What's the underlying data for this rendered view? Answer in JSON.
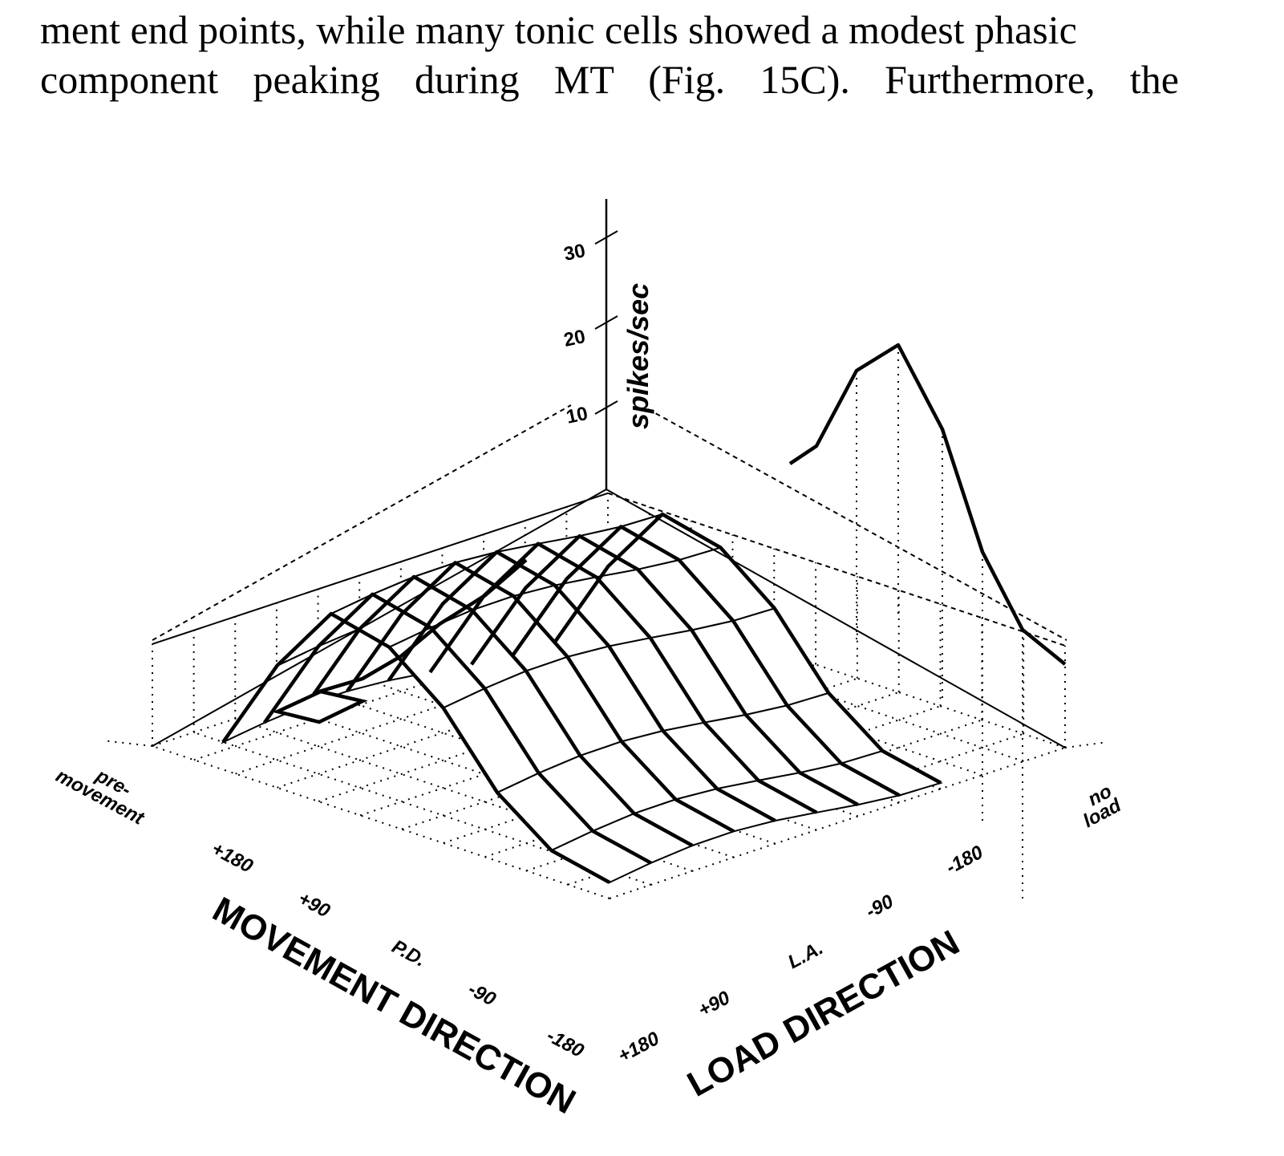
{
  "text": {
    "line1": "ment end points, while many tonic cells showed a modest phasic",
    "line2": "component peaking during MT (Fig. 15C). Furthermore, the"
  },
  "figure": {
    "z_axis": {
      "label": "spikes/sec",
      "ticks": [
        "10",
        "20",
        "30"
      ]
    },
    "movement_axis": {
      "label": "MOVEMENT DIRECTION",
      "premovement_label_1": "pre-",
      "premovement_label_2": "movement",
      "ticks": [
        "+180",
        "+90",
        "P.D.",
        "-90",
        "-180"
      ]
    },
    "load_axis": {
      "label": "LOAD DIRECTION",
      "noload_label_1": "no",
      "noload_label_2": "load",
      "ticks": [
        "+180",
        "+90",
        "L.A.",
        "-90",
        "-180"
      ]
    }
  }
}
